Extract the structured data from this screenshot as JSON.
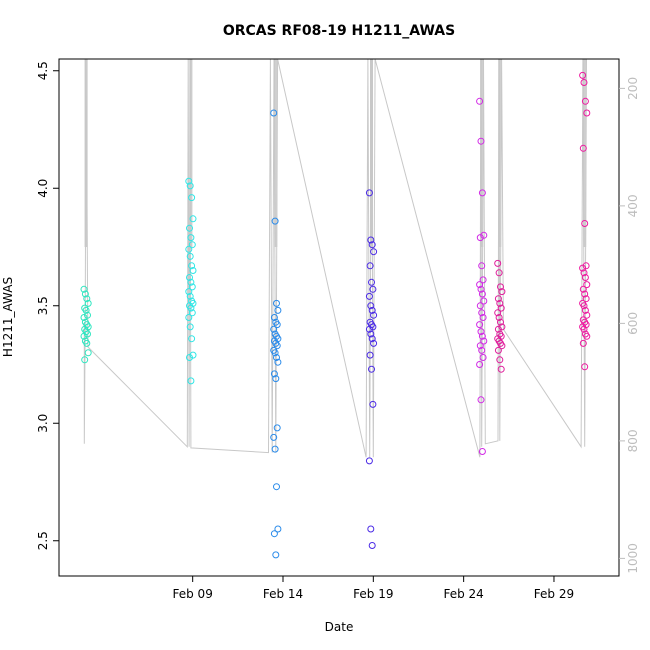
{
  "chart_data": {
    "type": "scatter",
    "title": "ORCAS RF08-19 H1211_AWAS",
    "xlabel": "Date",
    "ylabel": "H1211_AWAS",
    "x_ticks": [
      "Feb 09",
      "Feb 14",
      "Feb 19",
      "Feb 24",
      "Feb 29"
    ],
    "x_range_days": [
      1.6,
      32.6
    ],
    "x_tick_days": [
      9,
      14,
      19,
      24,
      29
    ],
    "ylim": [
      2.35,
      4.55
    ],
    "y_ticks": [
      2.5,
      3.0,
      3.5,
      4.0,
      4.5
    ],
    "y2_ticks": [
      200,
      400,
      600,
      800,
      1000
    ],
    "y2_lim": [
      1030,
      150
    ],
    "y2_reversed": true,
    "y2_color": "#bdbdbd",
    "grid": false,
    "legend": "none",
    "series": [
      {
        "color": "#2ee6c0",
        "x": [
          3.1,
          3.1,
          3.1,
          3.1,
          3.1,
          3.1,
          3.1,
          3.1,
          3.1,
          3.1,
          3.1,
          3.1,
          3.1,
          3.1,
          3.1,
          3.1,
          3.1,
          3.1,
          3.1
        ],
        "y": [
          3.57,
          3.55,
          3.53,
          3.51,
          3.49,
          3.48,
          3.46,
          3.45,
          3.43,
          3.42,
          3.41,
          3.4,
          3.39,
          3.38,
          3.37,
          3.35,
          3.34,
          3.3,
          3.27
        ]
      },
      {
        "color": "#30e6e6",
        "x": [
          8.9,
          8.9,
          8.9,
          8.9,
          8.9,
          8.9,
          8.9,
          8.9,
          8.9,
          8.9,
          8.9,
          8.9,
          8.9,
          8.9,
          8.9,
          8.9,
          8.9,
          8.9,
          8.9,
          8.9,
          8.9,
          8.9,
          8.9,
          8.9,
          8.9,
          8.9,
          8.9
        ],
        "y": [
          4.03,
          4.01,
          3.96,
          3.87,
          3.83,
          3.79,
          3.76,
          3.74,
          3.71,
          3.67,
          3.65,
          3.62,
          3.6,
          3.58,
          3.56,
          3.54,
          3.52,
          3.51,
          3.5,
          3.49,
          3.47,
          3.45,
          3.41,
          3.36,
          3.29,
          3.28,
          3.18
        ]
      },
      {
        "color": "#2a8bea",
        "x": [
          13.6,
          13.6,
          13.6,
          13.6,
          13.6,
          13.6,
          13.6,
          13.6,
          13.6,
          13.6,
          13.6,
          13.6,
          13.6,
          13.6,
          13.6,
          13.6,
          13.6,
          13.6,
          13.6,
          13.6,
          13.6,
          13.6,
          13.6,
          13.6,
          13.6,
          13.6
        ],
        "y": [
          4.32,
          3.86,
          3.51,
          3.48,
          3.45,
          3.43,
          3.42,
          3.4,
          3.38,
          3.37,
          3.36,
          3.35,
          3.34,
          3.33,
          3.31,
          3.3,
          3.28,
          3.26,
          3.21,
          3.19,
          2.98,
          2.94,
          2.89,
          2.73,
          2.55,
          2.53
        ],
        "extra": [
          2.44
        ]
      },
      {
        "color": "#4a2ae6",
        "x": [
          18.9,
          18.9,
          18.9,
          18.9,
          18.9,
          18.9,
          18.9,
          18.9,
          18.9,
          18.9,
          18.9,
          18.9,
          18.9,
          18.9,
          18.9,
          18.9,
          18.9,
          18.9,
          18.9,
          18.9,
          18.9,
          18.9,
          18.9,
          18.9
        ],
        "y": [
          3.98,
          3.78,
          3.76,
          3.73,
          3.67,
          3.6,
          3.57,
          3.54,
          3.5,
          3.48,
          3.46,
          3.43,
          3.42,
          3.41,
          3.4,
          3.38,
          3.36,
          3.34,
          3.29,
          3.23,
          3.08,
          2.84,
          2.55,
          2.48
        ]
      },
      {
        "color": "#d22ae6",
        "x": [
          25.0,
          25.0,
          25.0,
          25.0,
          25.0,
          25.0,
          25.0,
          25.0,
          25.0,
          25.0,
          25.0,
          25.0,
          25.0,
          25.0,
          25.0,
          25.0,
          25.0,
          25.0,
          25.0,
          25.0,
          25.0,
          25.0,
          25.0,
          25.0
        ],
        "y": [
          4.37,
          4.2,
          3.98,
          3.8,
          3.79,
          3.67,
          3.61,
          3.59,
          3.57,
          3.55,
          3.52,
          3.5,
          3.47,
          3.45,
          3.42,
          3.39,
          3.37,
          3.35,
          3.33,
          3.31,
          3.28,
          3.25,
          3.1,
          2.88
        ]
      },
      {
        "color": "#e01e9c",
        "x": [
          26.0,
          26.0,
          26.0,
          26.0,
          26.0,
          26.0,
          26.0,
          26.0,
          26.0,
          26.0,
          26.0,
          26.0,
          26.0,
          26.0,
          26.0,
          26.0,
          26.0,
          26.0,
          26.0,
          26.0,
          26.0
        ],
        "y": [
          3.68,
          3.64,
          3.58,
          3.56,
          3.53,
          3.51,
          3.49,
          3.47,
          3.45,
          3.43,
          3.41,
          3.4,
          3.38,
          3.37,
          3.36,
          3.35,
          3.34,
          3.33,
          3.31,
          3.27,
          3.23
        ]
      },
      {
        "color": "#ee1aa0",
        "x": [
          30.7,
          30.7,
          30.7,
          30.7,
          30.7,
          30.7,
          30.7,
          30.7,
          30.7,
          30.7,
          30.7,
          30.7,
          30.7,
          30.7,
          30.7,
          30.7,
          30.7,
          30.7,
          30.7,
          30.7,
          30.7,
          30.7,
          30.7,
          30.7,
          30.7,
          30.7,
          30.7
        ],
        "y": [
          4.48,
          4.45,
          4.37,
          4.32,
          4.17,
          3.85,
          3.67,
          3.66,
          3.64,
          3.62,
          3.59,
          3.57,
          3.55,
          3.53,
          3.51,
          3.5,
          3.48,
          3.46,
          3.44,
          3.43,
          3.42,
          3.41,
          3.4,
          3.38,
          3.37,
          3.34,
          3.24
        ]
      }
    ],
    "pressure_profile": {
      "color": "#c8c8c8",
      "x": [
        3.0,
        3.0,
        3.05,
        3.1,
        3.2,
        8.7,
        8.75,
        8.8,
        8.85,
        8.9,
        13.2,
        13.3,
        13.4,
        13.5,
        13.6,
        13.7,
        18.6,
        18.7,
        18.8,
        18.9,
        19.0,
        19.1,
        24.9,
        24.95,
        25.0,
        25.1,
        25.2,
        25.9,
        25.95,
        26.0,
        26.1,
        26.2,
        30.5,
        30.6,
        30.7,
        30.8
      ],
      "y": [
        600,
        805,
        600,
        150,
        640,
        810,
        150,
        810,
        150,
        812,
        820,
        150,
        820,
        150,
        820,
        150,
        828,
        150,
        828,
        150,
        828,
        150,
        828,
        150,
        810,
        150,
        805,
        800,
        150,
        800,
        150,
        610,
        810,
        150,
        810,
        150
      ]
    }
  }
}
